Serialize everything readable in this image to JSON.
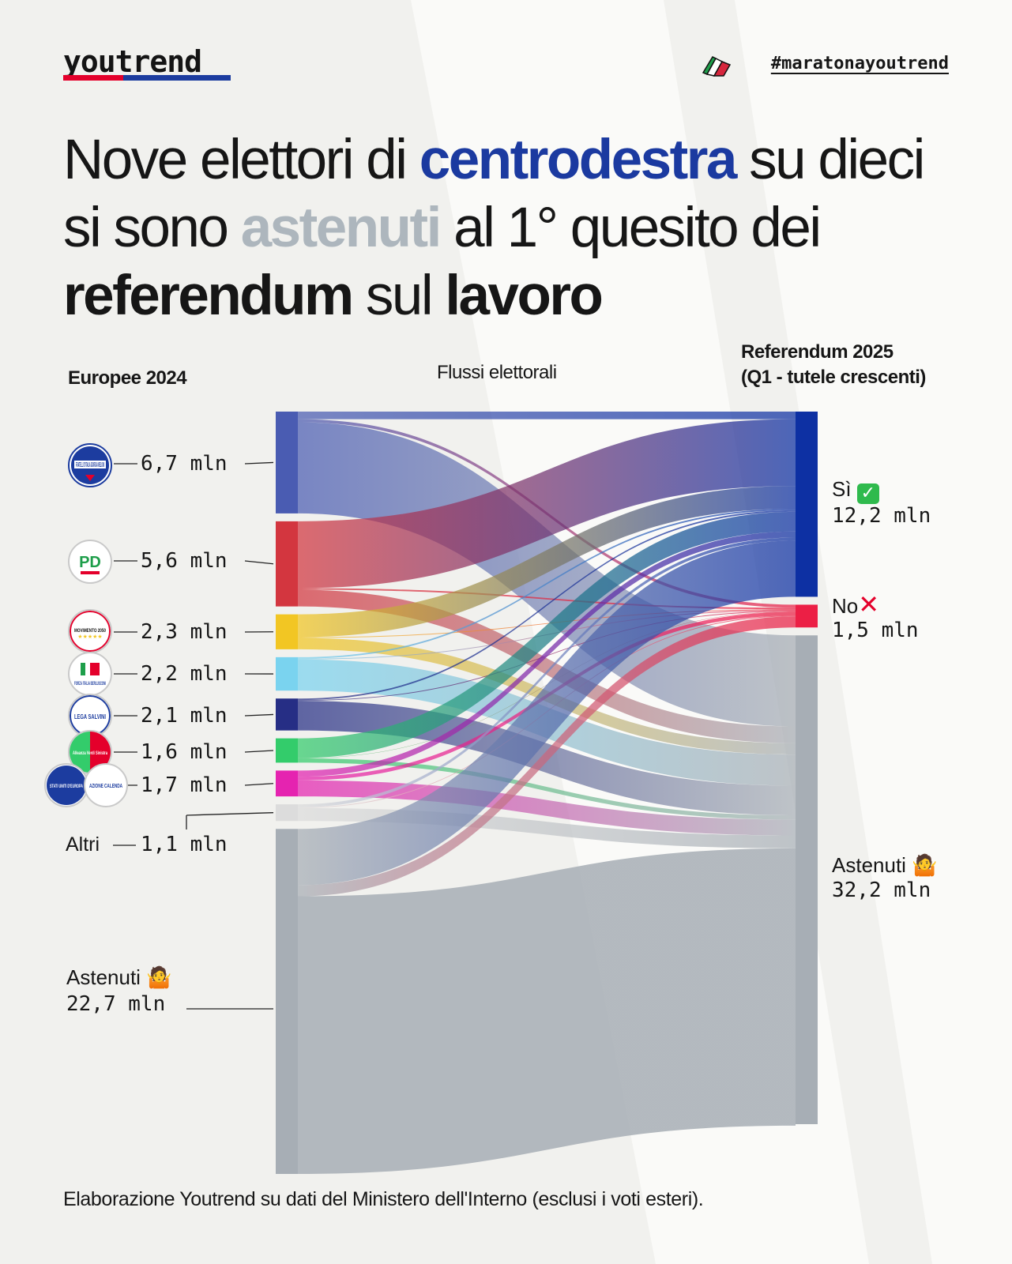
{
  "header": {
    "brand": "youtrend",
    "hashtag": "#maratonayoutrend",
    "brand_colors": {
      "red": "#e4002b",
      "blue": "#1c3c9f"
    }
  },
  "headline": {
    "p1": "Nove elettori di ",
    "p2": "centrodestra",
    "p3": " su dieci si sono ",
    "p4": "astenuti",
    "p5": " al 1° quesito dei ",
    "p6": "referendum",
    "p7": " sul ",
    "p8": "lavoro"
  },
  "column_headers": {
    "left": "Europee 2024",
    "middle": "Flussi elettorali",
    "right_line1": "Referendum 2025",
    "right_line2": "(Q1 - tutele crescenti)"
  },
  "icons": {
    "hashtag_flag": "italian-flag-icon",
    "si": "check-mark-icon",
    "no": "cross-mark-icon",
    "astenuti": "shrug-person-icon"
  },
  "logos": {
    "fdi": "FRATELLI D'ITALIA GIORGIA MELONI",
    "pd": "PD",
    "m5s": "MOVIMENTO 2050",
    "fi": "FORZA ITALIA BERLUSCONI",
    "lega": "LEGA SALVINI",
    "avs": "Alleanza Verdi Sinistra",
    "seu": "STATI UNITI D'EUROPA",
    "azione": "AZIONE CALENDA"
  },
  "chart_data": {
    "type": "sankey",
    "unit": "mln",
    "sources": [
      {
        "id": "fdi",
        "value_label": "6,7 mln",
        "value": 6.7,
        "color": "#4a5cb2"
      },
      {
        "id": "pd",
        "value_label": "5,6 mln",
        "value": 5.6,
        "color": "#d3363f"
      },
      {
        "id": "m5s",
        "value_label": "2,3 mln",
        "value": 2.3,
        "color": "#f2c623"
      },
      {
        "id": "fi",
        "value_label": "2,2 mln",
        "value": 2.2,
        "color": "#7ad3ef"
      },
      {
        "id": "lega",
        "value_label": "2,1 mln",
        "value": 2.1,
        "color": "#262e85"
      },
      {
        "id": "avs",
        "value_label": "1,6 mln",
        "value": 1.6,
        "color": "#33cc6b"
      },
      {
        "id": "seu_az",
        "value_label": "1,7 mln",
        "value": 1.7,
        "color": "#e523b0"
      },
      {
        "id": "altri",
        "label": "Altri",
        "value_label": "1,1 mln",
        "value": 1.1,
        "color": "#dcdcdc"
      },
      {
        "id": "astenuti",
        "label": "Astenuti",
        "value_label": "22,7 mln",
        "value": 22.7,
        "color": "#a7aeb5"
      }
    ],
    "targets": [
      {
        "id": "si",
        "label": "Sì",
        "value_label": "12,2 mln",
        "value": 12.2,
        "color": "#0d30a3"
      },
      {
        "id": "no",
        "label": "No",
        "value_label": "1,5 mln",
        "value": 1.5,
        "color": "#ec1f45"
      },
      {
        "id": "astenuti",
        "label": "Astenuti",
        "value_label": "32,2 mln",
        "value": 32.2,
        "color": "#a7aeb5"
      }
    ],
    "flows": [
      {
        "from": "fdi",
        "to": "si",
        "value": 0.5
      },
      {
        "from": "fdi",
        "to": "no",
        "value": 0.2
      },
      {
        "from": "fdi",
        "to": "astenuti",
        "value": 6.0
      },
      {
        "from": "pd",
        "to": "si",
        "value": 4.4
      },
      {
        "from": "pd",
        "to": "no",
        "value": 0.1
      },
      {
        "from": "pd",
        "to": "astenuti",
        "value": 1.1
      },
      {
        "from": "m5s",
        "to": "si",
        "value": 1.5
      },
      {
        "from": "m5s",
        "to": "no",
        "value": 0.05
      },
      {
        "from": "m5s",
        "to": "astenuti",
        "value": 0.75
      },
      {
        "from": "fi",
        "to": "si",
        "value": 0.1
      },
      {
        "from": "fi",
        "to": "no",
        "value": 0.05
      },
      {
        "from": "fi",
        "to": "astenuti",
        "value": 2.05
      },
      {
        "from": "lega",
        "to": "si",
        "value": 0.1
      },
      {
        "from": "lega",
        "to": "no",
        "value": 0.05
      },
      {
        "from": "lega",
        "to": "astenuti",
        "value": 1.95
      },
      {
        "from": "avs",
        "to": "si",
        "value": 1.3
      },
      {
        "from": "avs",
        "to": "no",
        "value": 0.02
      },
      {
        "from": "avs",
        "to": "astenuti",
        "value": 0.28
      },
      {
        "from": "seu_az",
        "to": "si",
        "value": 0.4
      },
      {
        "from": "seu_az",
        "to": "no",
        "value": 0.25
      },
      {
        "from": "seu_az",
        "to": "astenuti",
        "value": 1.05
      },
      {
        "from": "altri",
        "to": "si",
        "value": 0.2
      },
      {
        "from": "altri",
        "to": "no",
        "value": 0.05
      },
      {
        "from": "altri",
        "to": "astenuti",
        "value": 0.85
      },
      {
        "from": "astenuti",
        "to": "si",
        "value": 3.7
      },
      {
        "from": "astenuti",
        "to": "no",
        "value": 0.73
      },
      {
        "from": "astenuti",
        "to": "astenuti",
        "value": 18.27
      }
    ]
  },
  "footer": "Elaborazione Youtrend su dati del Ministero dell'Interno (esclusi i voti esteri)."
}
